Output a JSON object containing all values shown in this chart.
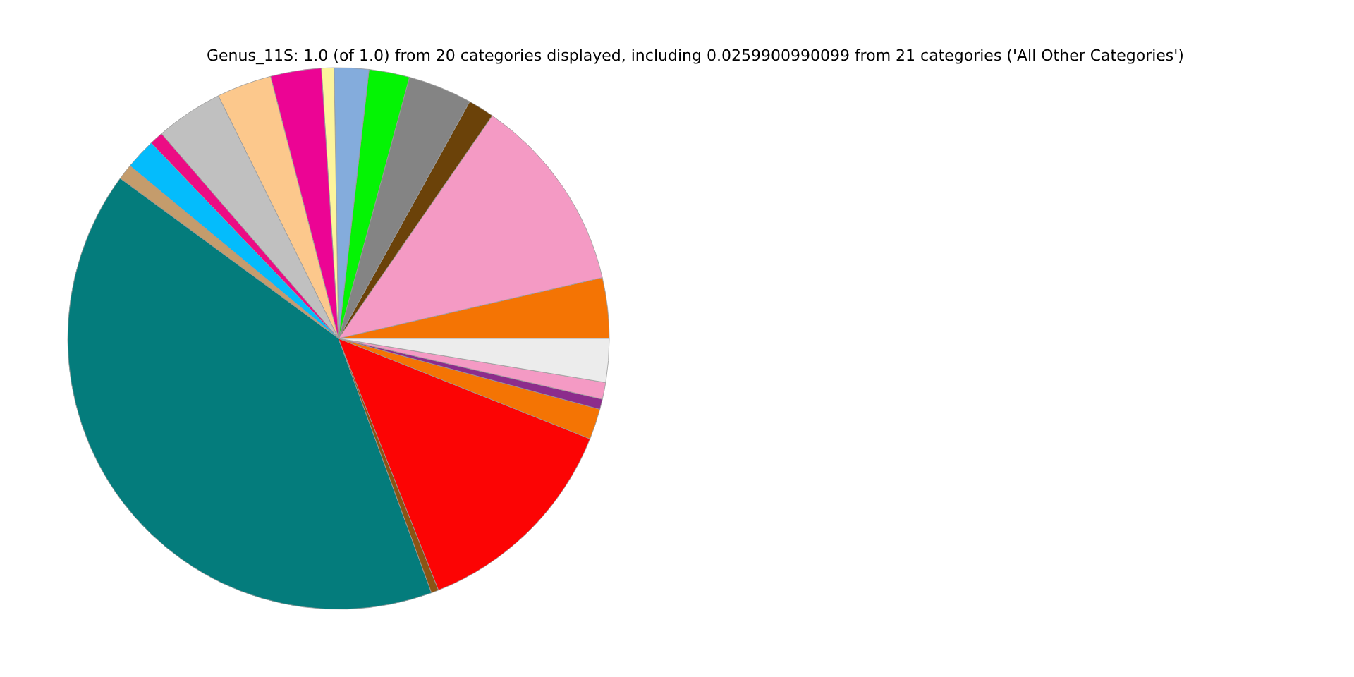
{
  "chart_data": {
    "type": "pie",
    "title": "Genus_11S: 1.0 (of 1.0) from 20 categories displayed, including 0.0259900990099 from 21 categories ('All Other Categories')",
    "categories": [
      null,
      null,
      null,
      null,
      null,
      null,
      null,
      null,
      null,
      null,
      null,
      null,
      null,
      null,
      null,
      null,
      null,
      null,
      null,
      null
    ],
    "values": [
      3.61,
      11.78,
      1.56,
      3.83,
      2.42,
      2.06,
      0.75,
      3.03,
      3.28,
      4.03,
      0.81,
      1.83,
      0.94,
      40.65,
      0.44,
      12.94,
      1.83,
      0.61,
      1.0,
      2.6
    ],
    "colors": [
      "#f47404",
      "#f49ac4",
      "#6b4209",
      "#848484",
      "#04f404",
      "#84acdc",
      "#fcf49c",
      "#ec0494",
      "#fcc88c",
      "#c0c0c0",
      "#ec0c84",
      "#04bcfc",
      "#c49c6c",
      "#047c7c",
      "#8c5414",
      "#fc0404",
      "#f47404",
      "#8c2c8c",
      "#f49ac4",
      "#ececec"
    ]
  }
}
